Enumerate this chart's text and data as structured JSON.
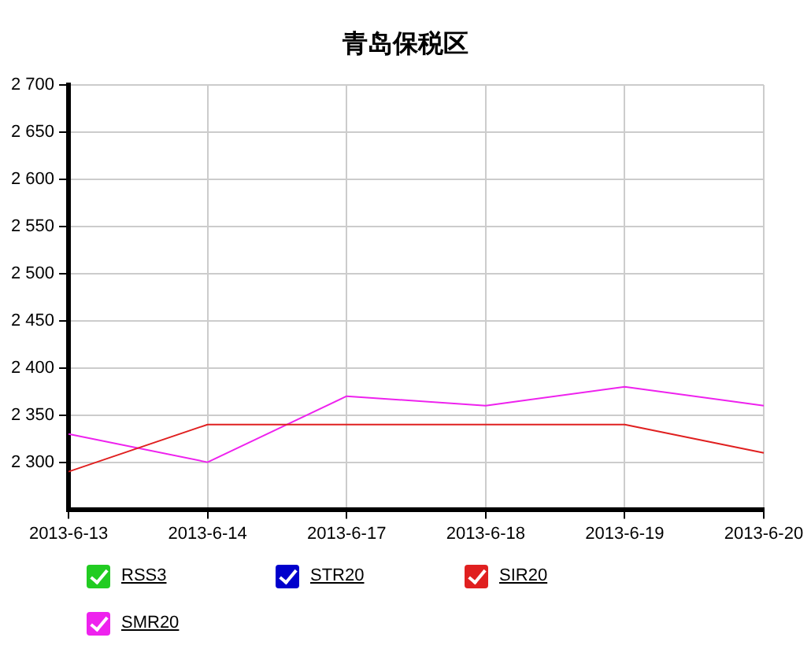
{
  "chart_data": {
    "type": "line",
    "title": "青岛保税区",
    "categories": [
      "2013-6-13",
      "2013-6-14",
      "2013-6-17",
      "2013-6-18",
      "2013-6-19",
      "2013-6-20"
    ],
    "series": [
      {
        "name": "RSS3",
        "color": "#22cc22",
        "values": [
          null,
          null,
          null,
          null,
          null,
          null
        ]
      },
      {
        "name": "STR20",
        "color": "#0000cc",
        "values": [
          null,
          null,
          null,
          null,
          null,
          null
        ]
      },
      {
        "name": "SIR20",
        "color": "#e02020",
        "values": [
          2290,
          2340,
          2340,
          2340,
          2340,
          2310
        ]
      },
      {
        "name": "SMR20",
        "color": "#ee22ee",
        "values": [
          2330,
          2300,
          2370,
          2360,
          2380,
          2360
        ]
      }
    ],
    "ylim": [
      2250,
      2700
    ],
    "yticks": [
      {
        "value": 2300,
        "label": "2 300"
      },
      {
        "value": 2350,
        "label": "2 350"
      },
      {
        "value": 2400,
        "label": "2 400"
      },
      {
        "value": 2450,
        "label": "2 450"
      },
      {
        "value": 2500,
        "label": "2 500"
      },
      {
        "value": 2550,
        "label": "2 550"
      },
      {
        "value": 2600,
        "label": "2 600"
      },
      {
        "value": 2650,
        "label": "2 650"
      },
      {
        "value": 2700,
        "label": "2 700"
      }
    ],
    "grid": true,
    "legend": "bottom",
    "marker": "none",
    "line_style": "solid"
  }
}
